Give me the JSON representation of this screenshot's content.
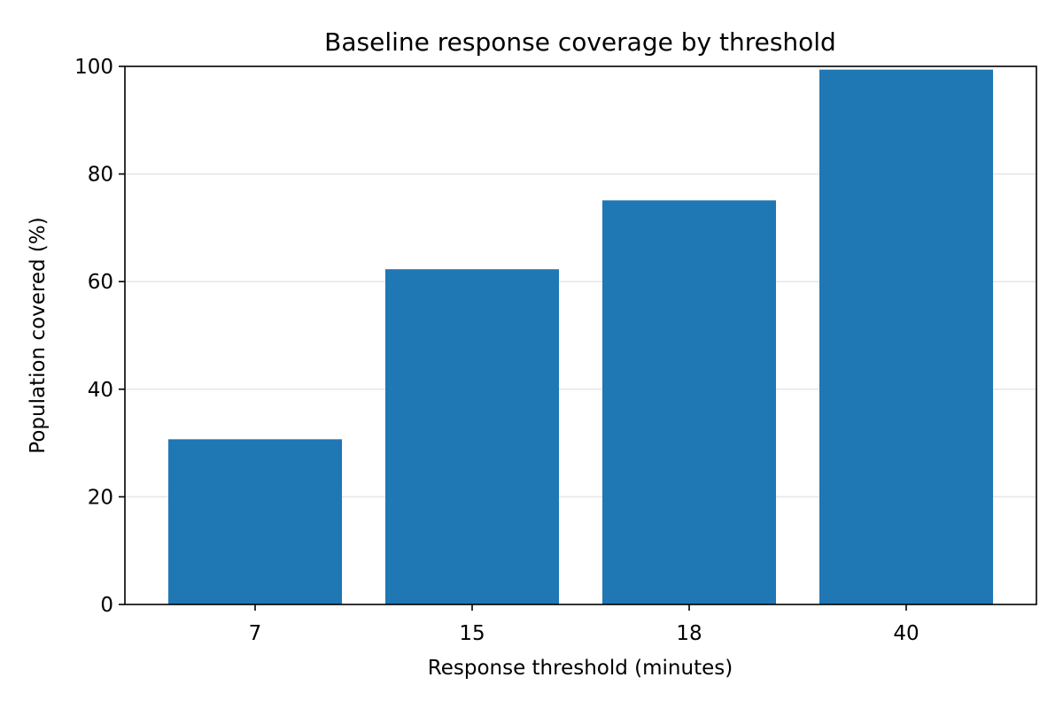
{
  "chart_data": {
    "type": "bar",
    "title": "Baseline response coverage by threshold",
    "xlabel": "Response threshold (minutes)",
    "ylabel": "Population covered (%)",
    "categories": [
      "7",
      "15",
      "18",
      "40"
    ],
    "values": [
      30.7,
      62.3,
      75.1,
      99.4
    ],
    "ylim": [
      0,
      100
    ],
    "yticks": [
      0,
      20,
      40,
      60,
      80,
      100
    ],
    "grid": "y-axis",
    "bar_color": "#1f77b4",
    "legend": "none"
  }
}
